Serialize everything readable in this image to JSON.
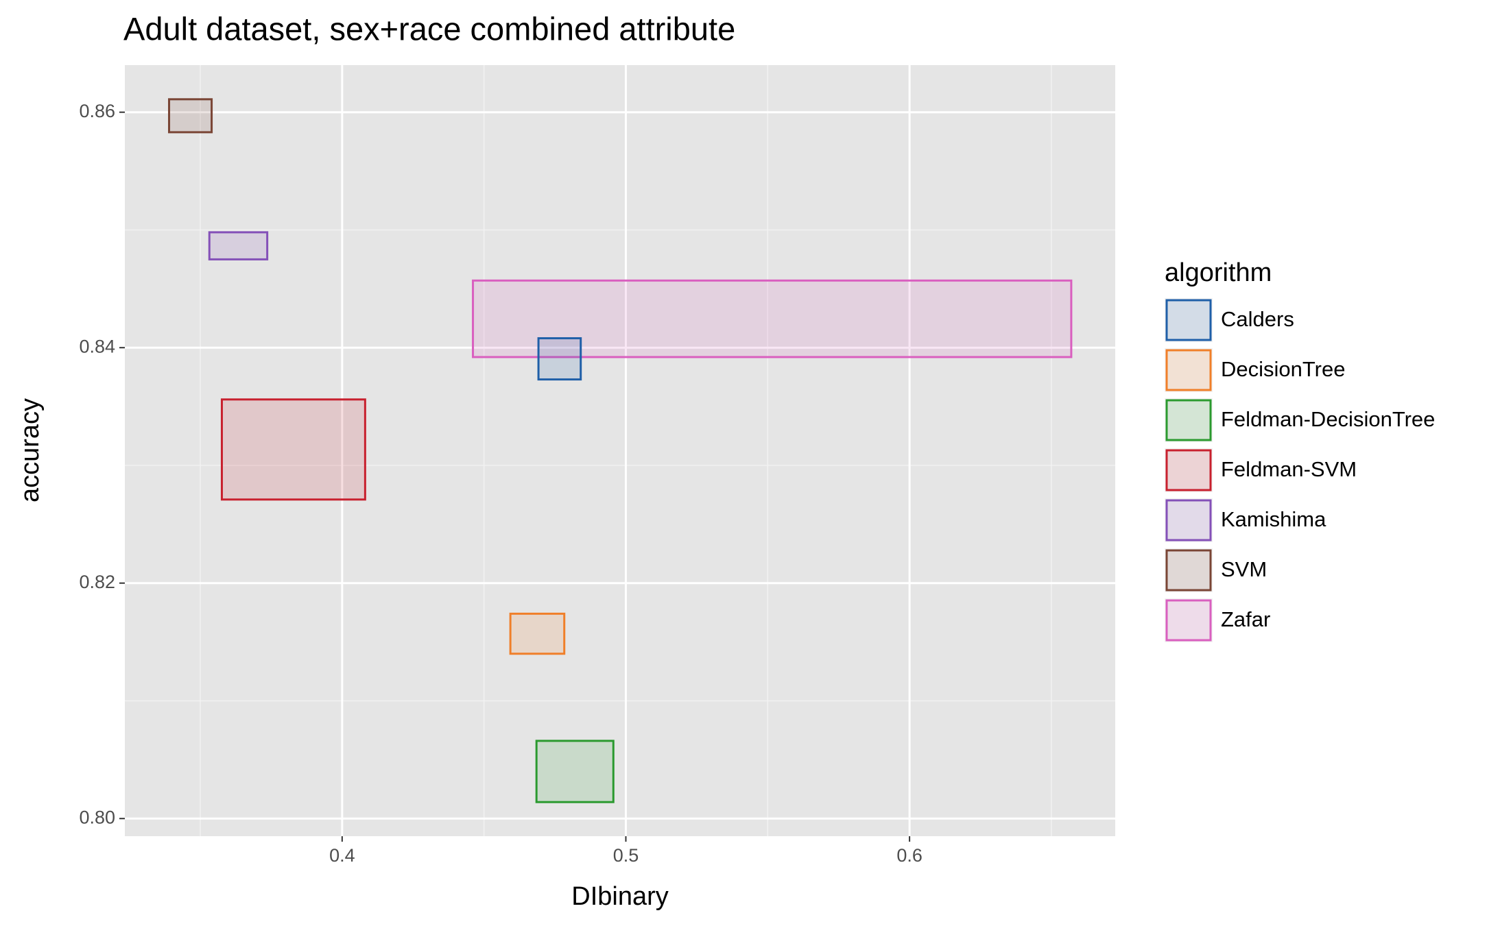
{
  "chart_data": {
    "type": "range-box",
    "title": "Adult dataset, sex+race combined attribute",
    "x_label": "DIbinary",
    "y_label": "accuracy",
    "legend_title": "algorithm",
    "legend": "right",
    "xlim": [
      0.3234,
      0.6725
    ],
    "ylim": [
      0.7985,
      0.864
    ],
    "xticks": [
      0.4,
      0.5,
      0.6
    ],
    "yticks": [
      {
        "value": 0.8,
        "label": "0.80"
      },
      0.82,
      0.84,
      0.86
    ],
    "x_minor_grid": [
      0.35,
      0.45,
      0.55,
      0.65
    ],
    "y_minor_grid": [
      0.81,
      0.83,
      0.85
    ],
    "grid": true,
    "series": [
      {
        "name": "Calders",
        "color": "#1f5fa8",
        "x": [
          0.4692,
          0.4841
        ],
        "y": [
          0.8373,
          0.8408
        ]
      },
      {
        "name": "DecisionTree",
        "color": "#f07f29",
        "x": [
          0.4593,
          0.4783
        ],
        "y": [
          0.814,
          0.8174
        ]
      },
      {
        "name": "Feldman-DecisionTree",
        "color": "#2b9a2f",
        "x": [
          0.4685,
          0.4956
        ],
        "y": [
          0.8014,
          0.8066
        ]
      },
      {
        "name": "Feldman-SVM",
        "color": "#c8202e",
        "x": [
          0.3576,
          0.4081
        ],
        "y": [
          0.8271,
          0.8356
        ]
      },
      {
        "name": "Kamishima",
        "color": "#8450b8",
        "x": [
          0.3532,
          0.3736
        ],
        "y": [
          0.8475,
          0.8498
        ]
      },
      {
        "name": "SVM",
        "color": "#7a4535",
        "x": [
          0.339,
          0.354
        ],
        "y": [
          0.8583,
          0.8611
        ]
      },
      {
        "name": "Zafar",
        "color": "#d95fbf",
        "x": [
          0.4461,
          0.657
        ],
        "y": [
          0.8392,
          0.8457
        ]
      }
    ]
  }
}
